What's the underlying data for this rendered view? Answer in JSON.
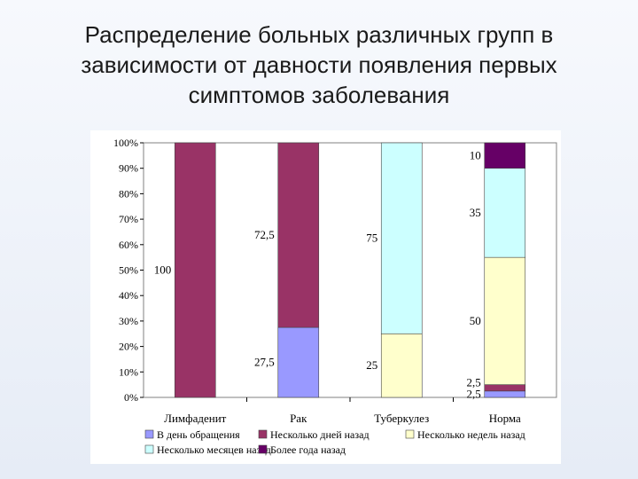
{
  "slide": {
    "title_lines": [
      "Распределение больных различных групп в",
      "зависимости от давности появления первых",
      "симптомов заболевания"
    ]
  },
  "chart_data": {
    "type": "bar",
    "stacked": true,
    "categories": [
      "Лимфаденит",
      "Рак",
      "Туберкулез",
      "Норма"
    ],
    "series": [
      {
        "name": "В день обращения",
        "color": "#9999ff",
        "values": [
          0,
          27.5,
          0,
          2.5
        ]
      },
      {
        "name": "Несколько дней назад",
        "color": "#993366",
        "values": [
          100,
          72.5,
          0,
          2.5
        ]
      },
      {
        "name": "Несколько недель назад",
        "color": "#ffffcc",
        "values": [
          0,
          0,
          25,
          50
        ]
      },
      {
        "name": "Несколько месяцев назад",
        "color": "#ccffff",
        "values": [
          0,
          0,
          75,
          35
        ]
      },
      {
        "name": "Более года назад",
        "color": "#660066",
        "values": [
          0,
          0,
          0,
          10
        ]
      }
    ],
    "data_labels": [
      {
        "category": 0,
        "series": 1,
        "text": "100"
      },
      {
        "category": 1,
        "series": 0,
        "text": "27,5"
      },
      {
        "category": 1,
        "series": 1,
        "text": "72,5"
      },
      {
        "category": 2,
        "series": 2,
        "text": "25"
      },
      {
        "category": 2,
        "series": 3,
        "text": "75"
      },
      {
        "category": 3,
        "series": 0,
        "text": "2,5"
      },
      {
        "category": 3,
        "series": 1,
        "text": "2,5"
      },
      {
        "category": 3,
        "series": 2,
        "text": "50"
      },
      {
        "category": 3,
        "series": 3,
        "text": "35"
      },
      {
        "category": 3,
        "series": 4,
        "text": "10"
      }
    ],
    "y_ticks": [
      "0%",
      "10%",
      "20%",
      "30%",
      "40%",
      "50%",
      "60%",
      "70%",
      "80%",
      "90%",
      "100%"
    ],
    "ylim": [
      0,
      100
    ],
    "grid": false,
    "legend_position": "bottom",
    "title": "",
    "xlabel": "",
    "ylabel": ""
  }
}
